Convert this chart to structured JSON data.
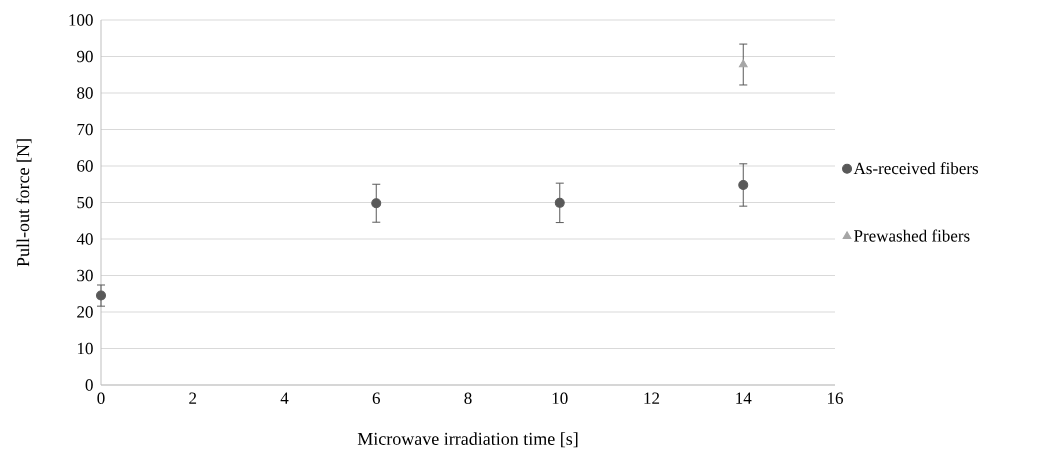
{
  "chart_data": {
    "type": "scatter",
    "xlabel": "Microwave irradiation time [s]",
    "ylabel": "Pull-out force [N]",
    "series": [
      {
        "name": "As-received fibers",
        "color": "#595959",
        "marker": "circle",
        "x": [
          0,
          6,
          10,
          14
        ],
        "values": [
          24.5,
          49.8,
          49.9,
          54.8
        ],
        "errors": [
          2.9,
          5.2,
          5.4,
          5.8
        ]
      },
      {
        "name": "Prewashed fibers",
        "color": "#a6a6a6",
        "marker": "triangle",
        "x": [
          14
        ],
        "values": [
          87.8
        ],
        "errors": [
          5.6
        ]
      }
    ],
    "xlim": [
      0,
      16
    ],
    "xticks": [
      0,
      2,
      4,
      6,
      8,
      10,
      12,
      14,
      16
    ],
    "ylim": [
      0,
      100
    ],
    "yticks": [
      0,
      10,
      20,
      30,
      40,
      50,
      60,
      70,
      80,
      90,
      100
    ],
    "grid": "y",
    "legend": "right"
  }
}
